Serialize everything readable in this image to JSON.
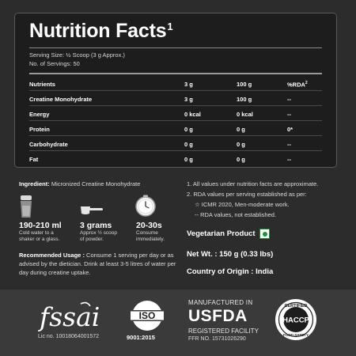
{
  "nutrition": {
    "title": "Nutrition Facts",
    "title_sup": "1",
    "serving_size": "Serving Size: ½ Scoop (3 g Approx.)",
    "servings": "No. of Servings: 50",
    "header": {
      "nutrients": "Nutrients",
      "per_serving": "3 g",
      "per_100": "100 g",
      "rda": "%RDA",
      "rda_sup": "2"
    },
    "rows": [
      {
        "name": "Creatine Monohydrate",
        "per_serving": "3 g",
        "per_100": "100 g",
        "rda": "--"
      },
      {
        "name": "Energy",
        "per_serving": "0 kcal",
        "per_100": "0 kcal",
        "rda": "--"
      },
      {
        "name": "Protein",
        "per_serving": "0 g",
        "per_100": "0 g",
        "rda": "0*"
      },
      {
        "name": "Carbohydrate",
        "per_serving": "0 g",
        "per_100": "0 g",
        "rda": "--"
      },
      {
        "name": "Fat",
        "per_serving": "0 g",
        "per_100": "0 g",
        "rda": "--"
      }
    ]
  },
  "ingredient": {
    "label": "Ingredient:",
    "value": "Micronized Creatine Monohydrate"
  },
  "usage_stats": [
    {
      "icon": "shaker-icon",
      "big": "190-210 ml",
      "small1": "Cold water to a",
      "small2": "shaker or a glass."
    },
    {
      "icon": "scoop-icon",
      "big": "3 grams",
      "small1": "Approx ½ scoop",
      "small2": "of powder."
    },
    {
      "icon": "clock-icon",
      "big": "20-30s",
      "small1": "Consume",
      "small2": "immediately."
    }
  ],
  "recommended_usage": {
    "label": "Recommended Usage :",
    "text": "Consume 1 serving per day or as advised by the dietician. Drink at least 3-5 litres of water per day during creatine uptake."
  },
  "notes": {
    "note1": "1.  All values under nutrition facts are approximate.",
    "note2": "2.  RDA values per serving established as per:",
    "note3": "☆  ICMR 2020, Men-moderate work.",
    "note4": "--  RDA values, not established."
  },
  "product_info": {
    "vegetarian": "Vegetarian Product",
    "net_wt": "Net Wt. : 150 g (0.33 lbs)",
    "origin": "Country of Origin : India"
  },
  "footer": {
    "fssai_logo_text": "fssai",
    "fssai_lic": "Lic no. 10018064001572",
    "iso_logo_text": "ISO",
    "iso_text": "9001:2015",
    "usfda_top": "MANUFACTURED IN",
    "usfda_big": "USFDA",
    "usfda_reg": "REGISTERED FACILITY",
    "usfda_ffr": "FFR NO. 15731026290",
    "haccp_text": "HACCP",
    "haccp_ring_top": "CERTIFIED",
    "haccp_ring_bottom": "FOOD SAFETY"
  },
  "colors": {
    "background": "#2c2c2c",
    "panel": "#1d1d1d",
    "footer": "#3a3a3a",
    "veg_green": "#1f8f3a"
  }
}
